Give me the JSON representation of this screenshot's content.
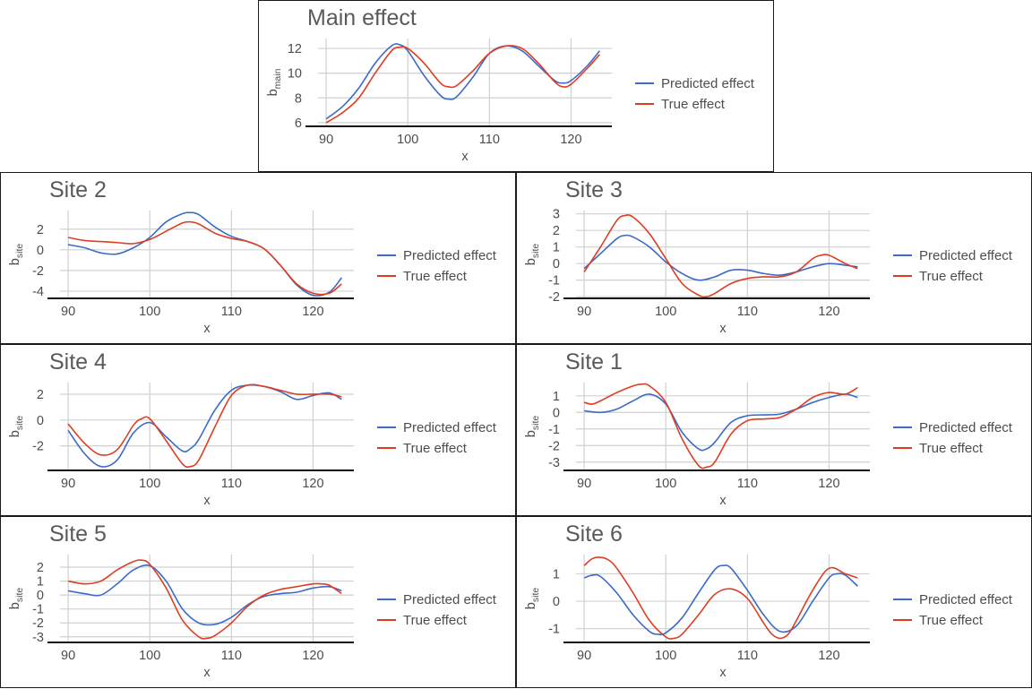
{
  "colors": {
    "predicted": "#3a6bc6",
    "true": "#dd3e22"
  },
  "chart_data": [
    {
      "type": "line",
      "title": "Main effect",
      "xlabel": "x",
      "ylabel": "b",
      "ylabel_sub": "main",
      "xlim": [
        89,
        125
      ],
      "ylim": [
        5.7,
        12.8
      ],
      "xticks": [
        90,
        100,
        110,
        120
      ],
      "yticks": [
        6,
        8,
        10,
        12
      ],
      "grid": true,
      "legend_position": "right",
      "series": [
        {
          "name": "Predicted effect",
          "key": "pred",
          "x": [
            90,
            92,
            94,
            96,
            98,
            99,
            100,
            102,
            104,
            105,
            106,
            108,
            110,
            112,
            114,
            116,
            118,
            119,
            120,
            122,
            123.5
          ],
          "y": [
            6.3,
            7.3,
            8.8,
            10.8,
            12.2,
            12.3,
            11.8,
            9.8,
            8.2,
            7.9,
            8.1,
            9.7,
            11.6,
            12.2,
            11.8,
            10.6,
            9.4,
            9.2,
            9.4,
            10.6,
            11.8
          ]
        },
        {
          "name": "True effect",
          "key": "true",
          "x": [
            90,
            92,
            94,
            96,
            98,
            99,
            100,
            102,
            104,
            105,
            106,
            108,
            110,
            112,
            114,
            116,
            118,
            119,
            120,
            122,
            123.5
          ],
          "y": [
            6.0,
            6.8,
            8.0,
            10.0,
            11.8,
            12.1,
            12.0,
            10.8,
            9.2,
            8.9,
            9.0,
            10.2,
            11.6,
            12.2,
            12.0,
            10.8,
            9.3,
            8.9,
            9.1,
            10.4,
            11.5
          ]
        }
      ]
    },
    {
      "type": "line",
      "title": "Site 2",
      "xlabel": "x",
      "ylabel": "b",
      "ylabel_sub": "site",
      "xlim": [
        89,
        125
      ],
      "ylim": [
        -4.7,
        3.8
      ],
      "xticks": [
        90,
        100,
        110,
        120
      ],
      "yticks": [
        -4,
        -2,
        0,
        2
      ],
      "grid": true,
      "legend_position": "right",
      "series": [
        {
          "name": "Predicted effect",
          "key": "pred",
          "x": [
            90,
            92,
            94,
            96,
            98,
            100,
            102,
            104,
            105,
            106,
            108,
            110,
            112,
            114,
            116,
            118,
            120,
            122,
            123.5
          ],
          "y": [
            0.5,
            0.2,
            -0.3,
            -0.4,
            0.2,
            1.2,
            2.7,
            3.5,
            3.6,
            3.4,
            2.2,
            1.3,
            0.8,
            0.1,
            -1.5,
            -3.4,
            -4.4,
            -4.1,
            -2.7
          ]
        },
        {
          "name": "True effect",
          "key": "true",
          "x": [
            90,
            92,
            94,
            96,
            98,
            100,
            102,
            104,
            105,
            106,
            108,
            110,
            112,
            114,
            116,
            118,
            120,
            122,
            123.5
          ],
          "y": [
            1.2,
            0.9,
            0.8,
            0.7,
            0.6,
            1.0,
            1.8,
            2.6,
            2.7,
            2.5,
            1.6,
            1.1,
            0.8,
            0.1,
            -1.5,
            -3.3,
            -4.2,
            -4.2,
            -3.3
          ]
        }
      ]
    },
    {
      "type": "line",
      "title": "Site 3",
      "xlabel": "x",
      "ylabel": "b",
      "ylabel_sub": "site",
      "xlim": [
        89,
        125
      ],
      "ylim": [
        -2.1,
        3.2
      ],
      "xticks": [
        90,
        100,
        110,
        120
      ],
      "yticks": [
        -2,
        -1,
        0,
        1,
        2,
        3
      ],
      "grid": true,
      "legend_position": "right",
      "series": [
        {
          "name": "Predicted effect",
          "key": "pred",
          "x": [
            90,
            92,
            94,
            95,
            96,
            98,
            100,
            102,
            104,
            106,
            108,
            110,
            112,
            114,
            116,
            118,
            120,
            122,
            123.5
          ],
          "y": [
            -0.3,
            0.6,
            1.5,
            1.7,
            1.6,
            1.0,
            0.1,
            -0.6,
            -1.0,
            -0.8,
            -0.4,
            -0.4,
            -0.6,
            -0.7,
            -0.5,
            -0.2,
            0.0,
            -0.1,
            -0.2
          ]
        },
        {
          "name": "True effect",
          "key": "true",
          "x": [
            90,
            92,
            94,
            95,
            96,
            98,
            100,
            102,
            104,
            105,
            106,
            108,
            110,
            112,
            114,
            116,
            118,
            119,
            120,
            122,
            123.5
          ],
          "y": [
            -0.5,
            1.0,
            2.6,
            2.9,
            2.8,
            1.8,
            0.3,
            -1.2,
            -1.9,
            -2.0,
            -1.8,
            -1.2,
            -0.9,
            -0.8,
            -0.8,
            -0.5,
            0.3,
            0.5,
            0.5,
            0.0,
            -0.3
          ]
        }
      ]
    },
    {
      "type": "line",
      "title": "Site 4",
      "xlabel": "x",
      "ylabel": "b",
      "ylabel_sub": "site",
      "xlim": [
        89,
        125
      ],
      "ylim": [
        -3.9,
        2.9
      ],
      "xticks": [
        90,
        100,
        110,
        120
      ],
      "yticks": [
        -2,
        0,
        2
      ],
      "grid": true,
      "legend_position": "right",
      "series": [
        {
          "name": "Predicted effect",
          "key": "pred",
          "x": [
            90,
            92,
            94,
            96,
            98,
            100,
            102,
            104,
            105,
            106,
            108,
            110,
            112,
            114,
            116,
            118,
            120,
            122,
            123.5
          ],
          "y": [
            -0.8,
            -2.6,
            -3.6,
            -3.1,
            -1.0,
            -0.2,
            -1.3,
            -2.4,
            -2.2,
            -1.5,
            0.8,
            2.3,
            2.7,
            2.6,
            2.2,
            1.6,
            1.9,
            2.1,
            1.6
          ]
        },
        {
          "name": "True effect",
          "key": "true",
          "x": [
            90,
            92,
            94,
            96,
            98,
            99,
            100,
            102,
            104,
            105,
            106,
            108,
            110,
            112,
            114,
            116,
            118,
            120,
            122,
            123.5
          ],
          "y": [
            -0.3,
            -1.8,
            -2.7,
            -2.3,
            -0.4,
            0.1,
            0.1,
            -1.6,
            -3.4,
            -3.6,
            -3.1,
            -0.5,
            1.9,
            2.7,
            2.6,
            2.3,
            2.0,
            2.0,
            2.0,
            1.8
          ]
        }
      ]
    },
    {
      "type": "line",
      "title": "Site 1",
      "xlabel": "x",
      "ylabel": "b",
      "ylabel_sub": "site",
      "xlim": [
        89,
        125
      ],
      "ylim": [
        -3.5,
        1.8
      ],
      "xticks": [
        90,
        100,
        110,
        120
      ],
      "yticks": [
        -3,
        -2,
        -1,
        0,
        1
      ],
      "grid": true,
      "legend_position": "right",
      "series": [
        {
          "name": "Predicted effect",
          "key": "pred",
          "x": [
            90,
            92,
            94,
            96,
            98,
            100,
            102,
            104,
            105,
            106,
            108,
            110,
            112,
            114,
            116,
            118,
            120,
            122,
            123.5
          ],
          "y": [
            0.1,
            0.0,
            0.2,
            0.7,
            1.1,
            0.5,
            -1.2,
            -2.2,
            -2.2,
            -1.8,
            -0.6,
            -0.2,
            -0.15,
            -0.1,
            0.2,
            0.6,
            0.9,
            1.1,
            0.9
          ]
        },
        {
          "name": "True effect",
          "key": "true",
          "x": [
            90,
            91,
            92,
            94,
            96,
            97,
            98,
            100,
            102,
            104,
            105,
            106,
            108,
            110,
            112,
            114,
            116,
            118,
            120,
            122,
            123.5
          ],
          "y": [
            0.6,
            0.5,
            0.7,
            1.2,
            1.6,
            1.7,
            1.6,
            0.6,
            -1.6,
            -3.2,
            -3.3,
            -3.0,
            -1.3,
            -0.5,
            -0.4,
            -0.3,
            0.2,
            0.9,
            1.2,
            1.1,
            1.5
          ]
        }
      ]
    },
    {
      "type": "line",
      "title": "Site 5",
      "xlabel": "x",
      "ylabel": "b",
      "ylabel_sub": "site",
      "xlim": [
        89,
        125
      ],
      "ylim": [
        -3.4,
        2.9
      ],
      "xticks": [
        90,
        100,
        110,
        120
      ],
      "yticks": [
        -3,
        -2,
        -1,
        0,
        1,
        2
      ],
      "grid": true,
      "legend_position": "right",
      "series": [
        {
          "name": "Predicted effect",
          "key": "pred",
          "x": [
            90,
            92,
            94,
            96,
            98,
            100,
            102,
            104,
            106,
            108,
            110,
            112,
            114,
            116,
            118,
            120,
            122,
            123.5
          ],
          "y": [
            0.3,
            0.1,
            0.0,
            0.8,
            1.8,
            2.1,
            1.0,
            -1.0,
            -2.0,
            -2.1,
            -1.6,
            -0.7,
            -0.1,
            0.1,
            0.2,
            0.5,
            0.6,
            0.3
          ]
        },
        {
          "name": "True effect",
          "key": "true",
          "x": [
            90,
            92,
            94,
            96,
            98,
            99,
            100,
            102,
            104,
            106,
            107,
            108,
            110,
            112,
            114,
            116,
            118,
            120,
            121,
            122,
            123.5
          ],
          "y": [
            1.0,
            0.8,
            1.0,
            1.8,
            2.4,
            2.5,
            2.2,
            0.5,
            -1.8,
            -3.0,
            -3.1,
            -2.9,
            -2.0,
            -0.8,
            0.0,
            0.4,
            0.6,
            0.8,
            0.8,
            0.7,
            0.1
          ]
        }
      ]
    },
    {
      "type": "line",
      "title": "Site 6",
      "xlabel": "x",
      "ylabel": "b",
      "ylabel_sub": "site",
      "xlim": [
        89,
        125
      ],
      "ylim": [
        -1.5,
        1.7
      ],
      "xticks": [
        90,
        100,
        110,
        120
      ],
      "yticks": [
        -1,
        0,
        1
      ],
      "grid": true,
      "legend_position": "right",
      "series": [
        {
          "name": "Predicted effect",
          "key": "pred",
          "x": [
            90,
            91,
            92,
            94,
            96,
            98,
            99,
            100,
            102,
            104,
            106,
            107,
            108,
            110,
            112,
            114,
            116,
            118,
            120,
            121,
            122,
            123.5
          ],
          "y": [
            0.85,
            0.95,
            0.9,
            0.3,
            -0.5,
            -1.1,
            -1.2,
            -1.15,
            -0.6,
            0.3,
            1.15,
            1.3,
            1.2,
            0.4,
            -0.5,
            -1.1,
            -0.9,
            0.0,
            0.85,
            1.0,
            0.95,
            0.55
          ]
        },
        {
          "name": "True effect",
          "key": "true",
          "x": [
            90,
            91,
            92,
            93,
            94,
            96,
            98,
            100,
            101,
            102,
            104,
            106,
            108,
            110,
            112,
            113,
            114,
            115,
            116,
            118,
            120,
            122,
            123.5
          ],
          "y": [
            1.3,
            1.55,
            1.6,
            1.5,
            1.2,
            0.3,
            -0.7,
            -1.3,
            -1.35,
            -1.2,
            -0.5,
            0.25,
            0.45,
            0.1,
            -0.8,
            -1.2,
            -1.35,
            -1.2,
            -0.7,
            0.4,
            1.2,
            1.0,
            0.85
          ]
        }
      ]
    }
  ]
}
